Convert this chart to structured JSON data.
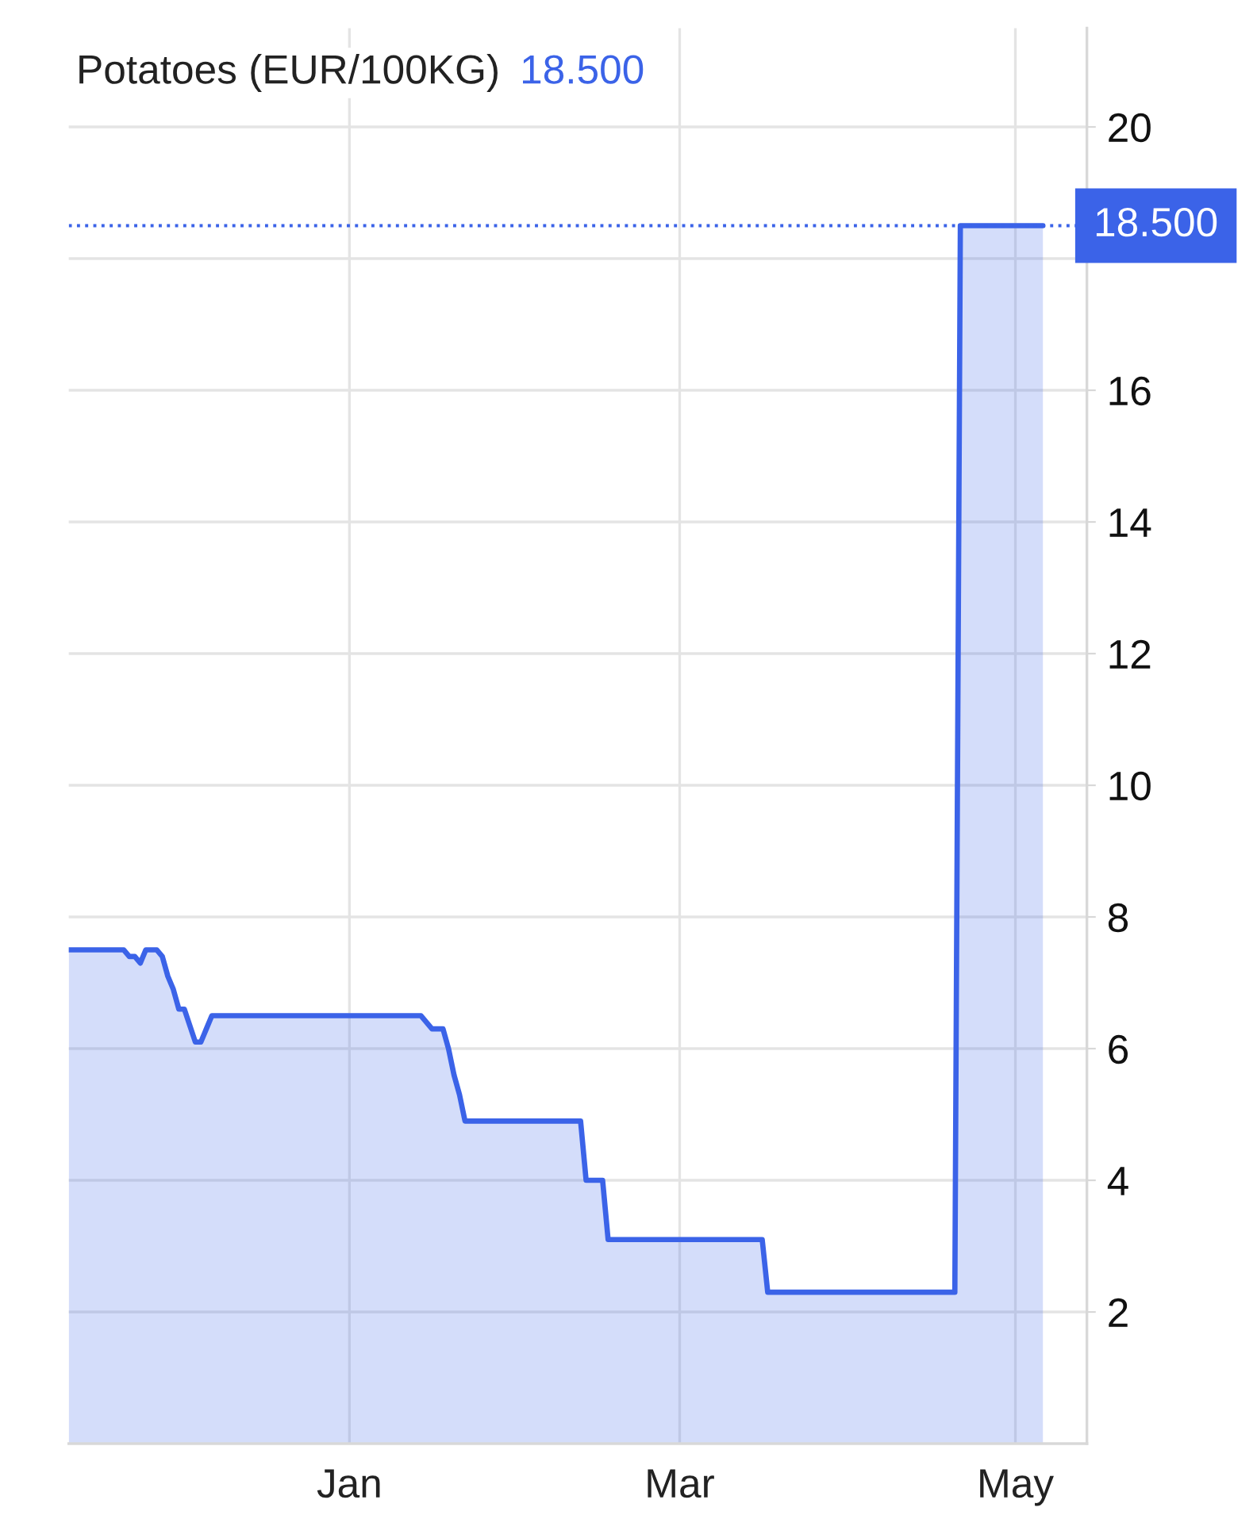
{
  "chart_data": {
    "type": "area",
    "title": "Potatoes (EUR/100KG)",
    "subtitle": "18.500",
    "categories": [
      null,
      null,
      null,
      null,
      null,
      null,
      null,
      null,
      null,
      null,
      null,
      null,
      null,
      null,
      null,
      null,
      null,
      null,
      null,
      null,
      null,
      null,
      null,
      null,
      null,
      null,
      null,
      null,
      null,
      null,
      null,
      null,
      null,
      null,
      null,
      null,
      null,
      null,
      null,
      null,
      null,
      null,
      null,
      null,
      null,
      null,
      null,
      null,
      null,
      null,
      null,
      "Jan",
      null,
      null,
      null,
      null,
      null,
      null,
      null,
      null,
      null,
      null,
      null,
      null,
      null,
      null,
      null,
      null,
      null,
      null,
      null,
      null,
      null,
      null,
      null,
      null,
      null,
      null,
      null,
      null,
      null,
      null,
      null,
      null,
      null,
      null,
      null,
      null,
      null,
      null,
      null,
      null,
      null,
      null,
      null,
      null,
      null,
      null,
      null,
      null,
      null,
      null,
      null,
      null,
      null,
      null,
      null,
      null,
      null,
      null,
      null,
      "Mar",
      null,
      null,
      null,
      null,
      null,
      null,
      null,
      null,
      null,
      null,
      null,
      null,
      null,
      null,
      null,
      null,
      null,
      null,
      null,
      null,
      null,
      null,
      null,
      null,
      null,
      null,
      null,
      null,
      null,
      null,
      null,
      null,
      null,
      null,
      null,
      null,
      null,
      null,
      null,
      null,
      null,
      null,
      null,
      null,
      null,
      null,
      null,
      null,
      null,
      null,
      null,
      null,
      null,
      null,
      null,
      null,
      null,
      null,
      null,
      null,
      "May",
      null,
      null,
      null,
      null,
      null,
      null,
      null,
      null,
      null,
      null,
      null,
      null,
      null
    ],
    "series": [
      {
        "color": "#3b63e8",
        "values": [
          7.5,
          7.5,
          7.5,
          7.5,
          7.5,
          7.5,
          7.5,
          7.5,
          7.5,
          7.5,
          7.5,
          7.4,
          7.4,
          7.3,
          7.5,
          7.5,
          7.5,
          7.4,
          7.1,
          6.9,
          6.6,
          6.6,
          6.35,
          6.1,
          6.1,
          6.3,
          6.5,
          6.5,
          6.5,
          6.5,
          6.5,
          6.5,
          6.5,
          6.5,
          6.5,
          6.5,
          6.5,
          6.5,
          6.5,
          6.5,
          6.5,
          6.5,
          6.5,
          6.5,
          6.5,
          6.5,
          6.5,
          6.5,
          6.5,
          6.5,
          6.5,
          6.5,
          6.5,
          6.5,
          6.5,
          6.5,
          6.5,
          6.5,
          6.5,
          6.5,
          6.5,
          6.5,
          6.5,
          6.5,
          6.5,
          6.4,
          6.3,
          6.3,
          6.3,
          6.0,
          5.6,
          5.3,
          4.9,
          4.9,
          4.9,
          4.9,
          4.9,
          4.9,
          4.9,
          4.9,
          4.9,
          4.9,
          4.9,
          4.9,
          4.9,
          4.9,
          4.9,
          4.9,
          4.9,
          4.9,
          4.9,
          4.9,
          4.9,
          4.9,
          4.0,
          4.0,
          4.0,
          4.0,
          3.1,
          3.1,
          3.1,
          3.1,
          3.1,
          3.1,
          3.1,
          3.1,
          3.1,
          3.1,
          3.1,
          3.1,
          3.1,
          3.1,
          3.1,
          3.1,
          3.1,
          3.1,
          3.1,
          3.1,
          3.1,
          3.1,
          3.1,
          3.1,
          3.1,
          3.1,
          3.1,
          3.1,
          3.1,
          2.3,
          2.3,
          2.3,
          2.3,
          2.3,
          2.3,
          2.3,
          2.3,
          2.3,
          2.3,
          2.3,
          2.3,
          2.3,
          2.3,
          2.3,
          2.3,
          2.3,
          2.3,
          2.3,
          2.3,
          2.3,
          2.3,
          2.3,
          2.3,
          2.3,
          2.3,
          2.3,
          2.3,
          2.3,
          2.3,
          2.3,
          2.3,
          2.3,
          2.3,
          2.3,
          18.5,
          18.5,
          18.5,
          18.5,
          18.5,
          18.5,
          18.5,
          18.5,
          18.5,
          18.5,
          18.5,
          18.5,
          18.5,
          18.5,
          18.5,
          18.5,
          null,
          null,
          null,
          null,
          null,
          null,
          null,
          null
        ]
      }
    ],
    "ylim": [
      0,
      21.5
    ],
    "yticks": [
      2,
      4,
      6,
      8,
      10,
      12,
      14,
      16,
      {
        "value": 18,
        "label": null
      },
      20
    ],
    "grid": true,
    "line_style": "solid",
    "ref_lines": [
      {
        "axis": "y",
        "value": 18.5,
        "label": "18.500",
        "color": "#3b63e8",
        "line_style": "dotted"
      }
    ]
  }
}
